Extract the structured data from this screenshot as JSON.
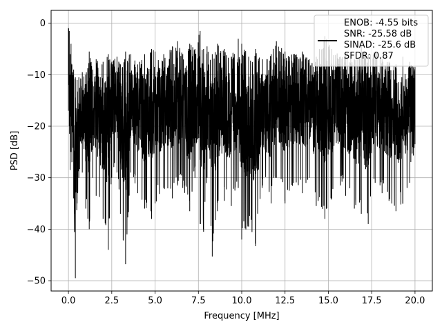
{
  "chart_data": {
    "type": "line",
    "title": "",
    "xlabel": "Frequency [MHz]",
    "ylabel": "PSD [dB]",
    "xlim": [
      -1.0,
      21.0
    ],
    "ylim": [
      -52.0,
      2.5
    ],
    "xticks": [
      0.0,
      2.5,
      5.0,
      7.5,
      10.0,
      12.5,
      15.0,
      17.5,
      20.0
    ],
    "xtick_labels": [
      "0.0",
      "2.5",
      "5.0",
      "7.5",
      "10.0",
      "12.5",
      "15.0",
      "17.5",
      "20.0"
    ],
    "yticks": [
      0,
      -10,
      -20,
      -30,
      -40,
      -50
    ],
    "ytick_labels": [
      "0",
      "−10",
      "−20",
      "−30",
      "−40",
      "−50"
    ],
    "grid": true,
    "line_color": "#000000",
    "legend": {
      "placement": "top-right",
      "entries": [
        "ENOB: -4.55 bits",
        "SNR: -25.58 dB",
        "SINAD: -25.6 dB",
        "SFDR: 0.87"
      ]
    },
    "series": [
      {
        "x": [
          0.0,
          0.05,
          0.1,
          0.15,
          0.2,
          0.3,
          0.4,
          0.5,
          0.6,
          0.8,
          1.0,
          1.2,
          1.4,
          1.6,
          2.0,
          2.3,
          2.5,
          2.8,
          3.0,
          3.3,
          3.6,
          4.0,
          4.4,
          4.8,
          5.0,
          5.5,
          6.0,
          6.3,
          6.6,
          7.0,
          7.3,
          7.6,
          7.8,
          8.0,
          8.3,
          8.6,
          9.0,
          9.4,
          9.8,
          10.0,
          10.4,
          10.8,
          11.2,
          11.7,
          12.0,
          12.5,
          13.0,
          13.5,
          13.9,
          14.3,
          14.8,
          15.2,
          15.7,
          16.0,
          16.5,
          16.9,
          17.3,
          17.7,
          18.1,
          18.5,
          18.9,
          19.3,
          19.7,
          20.0
        ],
        "y_peak": [
          -1.0,
          -1.5,
          -6.0,
          -4.0,
          -8.0,
          -9.0,
          -10.5,
          -11.0,
          -10.5,
          -9.5,
          -10.0,
          -5.5,
          -9.0,
          -7.0,
          -7.5,
          -6.0,
          -7.5,
          -6.5,
          -8.0,
          -5.5,
          -6.0,
          -8.0,
          -6.0,
          -5.0,
          -5.5,
          -6.0,
          -4.5,
          -3.5,
          -6.0,
          -4.0,
          -5.0,
          -1.5,
          -5.0,
          -4.5,
          -6.0,
          -4.0,
          -5.0,
          -6.5,
          -3.0,
          -4.0,
          -6.5,
          -5.0,
          -7.0,
          -6.0,
          -3.5,
          -5.5,
          -6.0,
          -5.5,
          -7.0,
          -6.5,
          -2.5,
          -5.0,
          -6.5,
          -5.5,
          -7.0,
          -4.5,
          -6.0,
          -5.5,
          -7.0,
          -7.5,
          -8.0,
          -6.5,
          -7.5,
          -8.5
        ],
        "y_trough": [
          -17.0,
          -20.0,
          -28.5,
          -25.0,
          -27.0,
          -34.0,
          -49.5,
          -35.0,
          -30.0,
          -29.0,
          -36.0,
          -40.0,
          -30.0,
          -33.5,
          -38.0,
          -44.0,
          -30.0,
          -29.0,
          -37.0,
          -46.8,
          -29.0,
          -33.0,
          -36.0,
          -38.0,
          -35.0,
          -32.0,
          -34.0,
          -31.5,
          -32.0,
          -36.5,
          -30.0,
          -39.0,
          -40.5,
          -30.0,
          -45.3,
          -36.5,
          -34.5,
          -35.5,
          -32.0,
          -42.0,
          -39.5,
          -43.3,
          -31.5,
          -35.0,
          -30.0,
          -35.0,
          -31.0,
          -33.0,
          -30.0,
          -35.5,
          -38.0,
          -34.0,
          -31.5,
          -33.5,
          -36.0,
          -37.0,
          -39.0,
          -31.0,
          -33.0,
          -34.5,
          -36.5,
          -35.0,
          -31.0,
          -23.5
        ]
      }
    ]
  }
}
